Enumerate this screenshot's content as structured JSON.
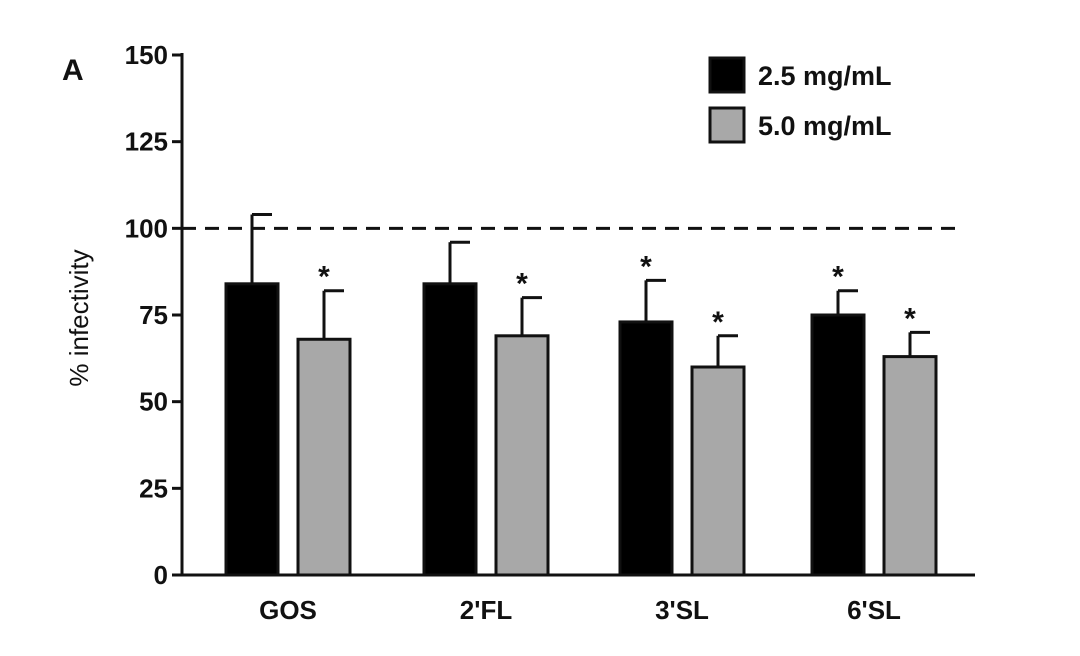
{
  "panel_label": "A",
  "chart_data": {
    "type": "bar",
    "ylabel": "% infectivity",
    "xlabel": "",
    "ylim": [
      0,
      150
    ],
    "yticks": [
      0,
      25,
      50,
      75,
      100,
      125,
      150
    ],
    "categories": [
      "GOS",
      "2'FL",
      "3'SL",
      "6'SL"
    ],
    "reference_line": {
      "value": 100,
      "style": "dashed"
    },
    "legend_position": "top-right",
    "grid": false,
    "series": [
      {
        "name": "2.5 mg/mL",
        "color": "#000000",
        "values": [
          84,
          84,
          73,
          75
        ],
        "errors": [
          20,
          12,
          12,
          7
        ],
        "significance": [
          "",
          "",
          "*",
          "*"
        ]
      },
      {
        "name": "5.0 mg/mL",
        "color": "#a8a8a8",
        "values": [
          68,
          69,
          60,
          63
        ],
        "errors": [
          14,
          11,
          9,
          7
        ],
        "significance": [
          "*",
          "*",
          "*",
          "*"
        ]
      }
    ]
  }
}
